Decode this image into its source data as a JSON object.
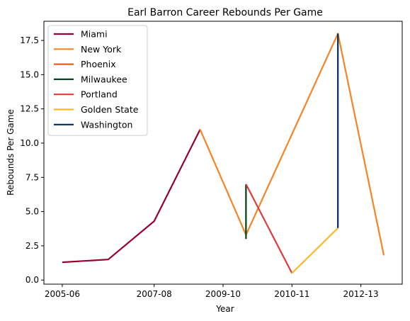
{
  "chart_data": {
    "type": "line",
    "title": "Earl Barron Career Rebounds Per Game",
    "xlabel": "Year",
    "ylabel": "Rebounds Per Game",
    "xlim": [
      -0.4,
      7.4
    ],
    "ylim": [
      -0.3,
      18.9
    ],
    "xticks": [
      {
        "pos": 0,
        "label": "2005-06"
      },
      {
        "pos": 2,
        "label": "2007-08"
      },
      {
        "pos": 3.5,
        "label": "2009-10"
      },
      {
        "pos": 5,
        "label": "2010-11"
      },
      {
        "pos": 6.5,
        "label": "2012-13"
      }
    ],
    "yticks": [
      0.0,
      2.5,
      5.0,
      7.5,
      10.0,
      12.5,
      15.0,
      17.5
    ],
    "ytick_labels": [
      "0.0",
      "2.5",
      "5.0",
      "7.5",
      "10.0",
      "12.5",
      "15.0",
      "17.5"
    ],
    "grid": false,
    "legend_position": "top-left",
    "series": [
      {
        "name": "Miami",
        "color": "#98002E",
        "points": [
          [
            0,
            1.3
          ],
          [
            1,
            1.5
          ],
          [
            2,
            4.3
          ],
          [
            3,
            11.0
          ]
        ]
      },
      {
        "name": "New York",
        "color": "#F58426",
        "points": [
          [
            3,
            11.0
          ],
          [
            4,
            3.3
          ],
          [
            6,
            18.0
          ],
          [
            7,
            1.8
          ]
        ]
      },
      {
        "name": "Phoenix",
        "color": "#E56020",
        "points": [
          [
            4,
            3.3
          ],
          [
            4,
            6.9
          ]
        ]
      },
      {
        "name": "Milwaukee",
        "color": "#00471B",
        "points": [
          [
            4,
            3.0
          ],
          [
            4,
            7.0
          ]
        ]
      },
      {
        "name": "Portland",
        "color": "#E03A3E",
        "points": [
          [
            4,
            7.0
          ],
          [
            5,
            0.5
          ]
        ]
      },
      {
        "name": "Golden State",
        "color": "#FDB927",
        "points": [
          [
            5,
            0.5
          ],
          [
            6,
            3.8
          ]
        ]
      },
      {
        "name": "Washington",
        "color": "#002B5C",
        "points": [
          [
            6,
            3.8
          ],
          [
            6,
            18.0
          ]
        ]
      }
    ]
  }
}
